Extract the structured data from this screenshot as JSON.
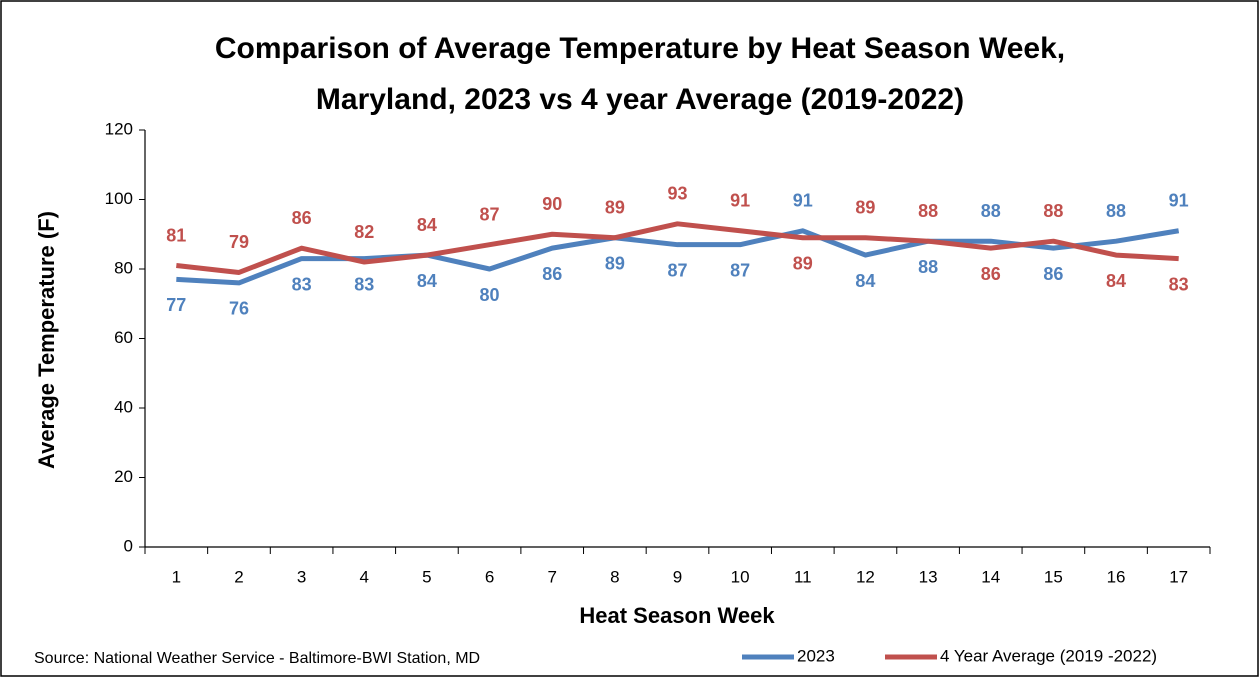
{
  "chart_data": {
    "type": "line",
    "title": [
      "Comparison of Average Temperature by Heat Season Week,",
      "Maryland, 2023 vs 4 year Average (2019-2022)"
    ],
    "xlabel": "Heat Season Week",
    "ylabel": "Average Temperature (F)",
    "source": "Source: National Weather Service - Baltimore-BWI Station, MD",
    "categories": [
      "1",
      "2",
      "3",
      "4",
      "5",
      "6",
      "7",
      "8",
      "9",
      "10",
      "11",
      "12",
      "13",
      "14",
      "15",
      "16",
      "17"
    ],
    "series": [
      {
        "name": "2023",
        "color": "#4f81bd",
        "values": [
          77,
          76,
          83,
          83,
          84,
          80,
          86,
          89,
          87,
          87,
          91,
          84,
          88,
          88,
          86,
          88,
          91
        ]
      },
      {
        "name": "4 Year Average (2019 -2022)",
        "color": "#c0504d",
        "values": [
          81,
          79,
          86,
          82,
          84,
          87,
          90,
          89,
          93,
          91,
          89,
          89,
          88,
          86,
          88,
          84,
          83
        ]
      }
    ],
    "ylim": [
      0,
      120
    ],
    "yticks": [
      0,
      20,
      40,
      60,
      80,
      100,
      120
    ],
    "grid": false,
    "legend": "bottom-right"
  }
}
